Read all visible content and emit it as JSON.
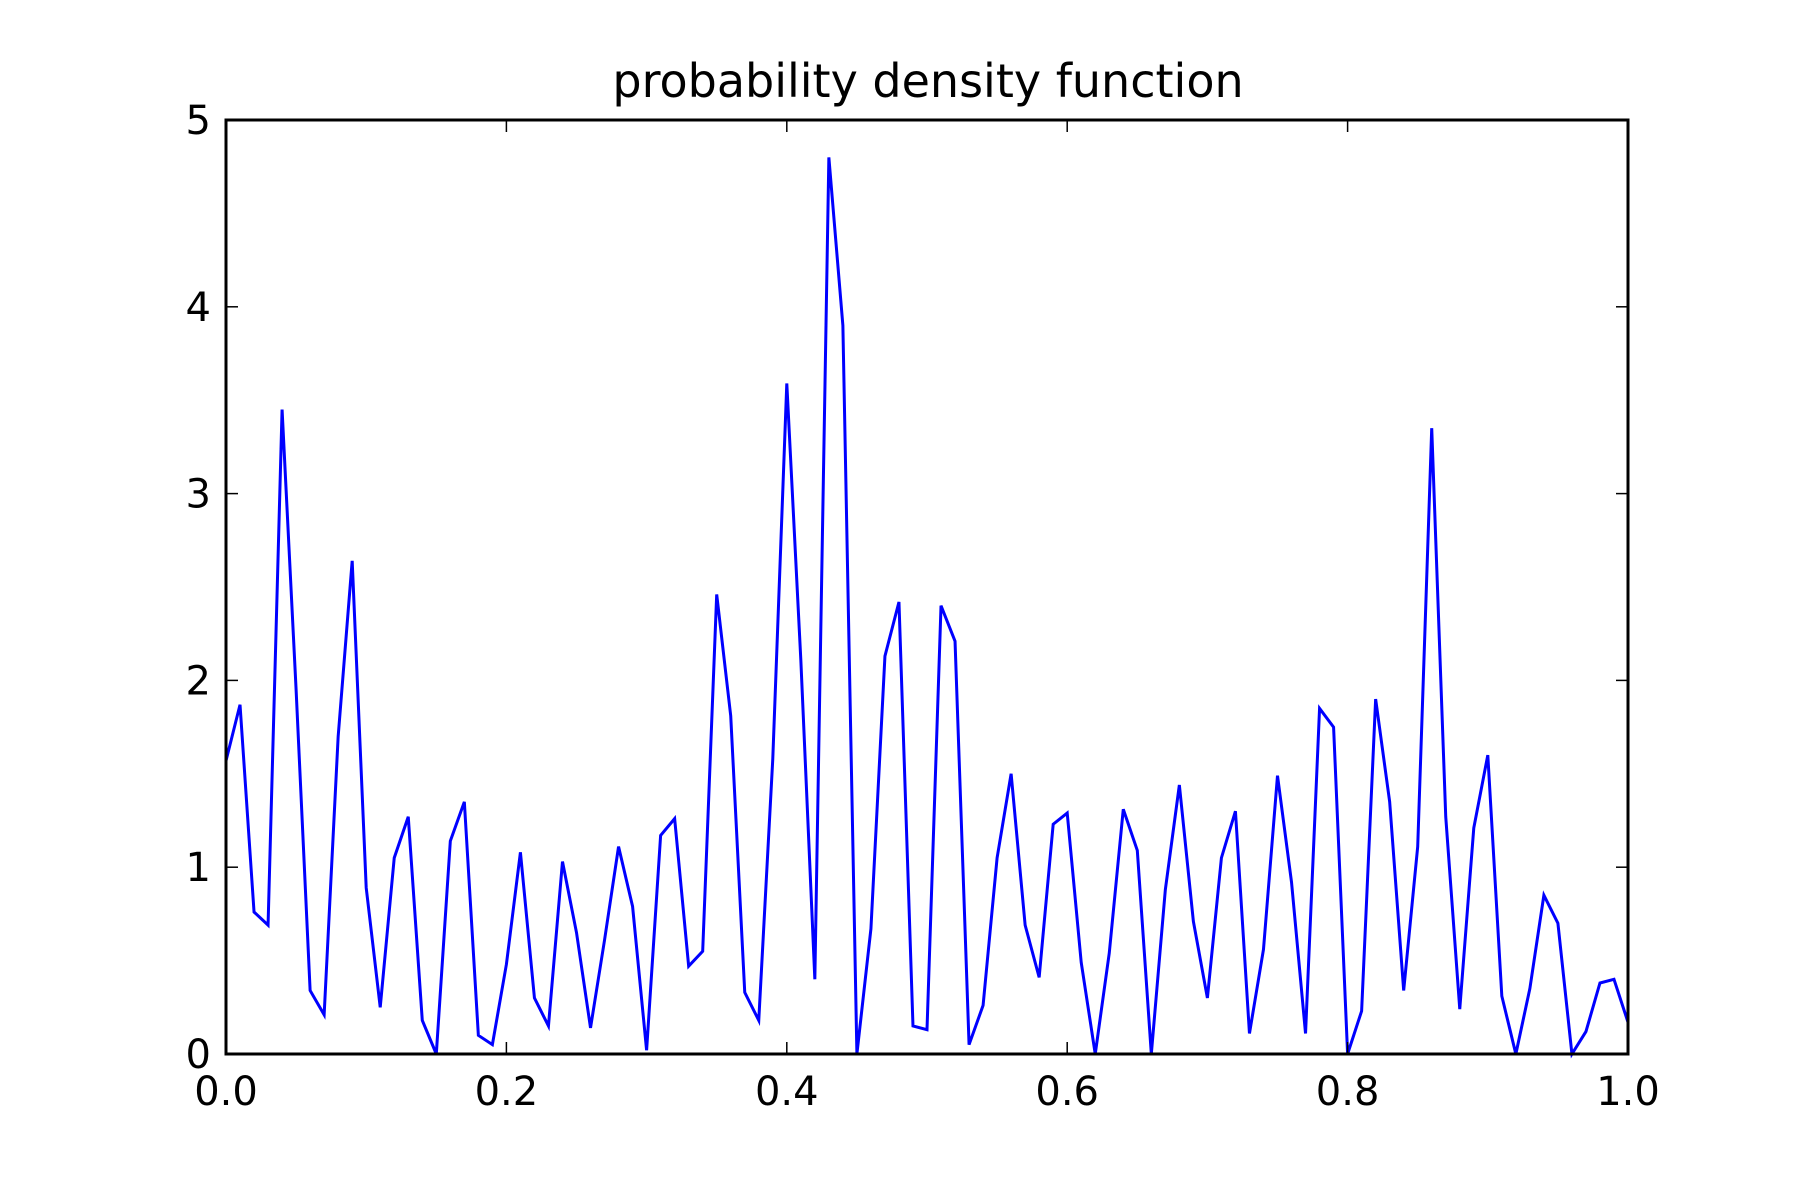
{
  "chart_data": {
    "type": "line",
    "title": "probability density function",
    "xlabel": "",
    "ylabel": "",
    "xlim": [
      0.0,
      1.0
    ],
    "ylim": [
      0,
      5
    ],
    "x_ticks": [
      "0.0",
      "0.2",
      "0.4",
      "0.6",
      "0.8",
      "1.0"
    ],
    "y_ticks": [
      "0",
      "1",
      "2",
      "3",
      "4",
      "5"
    ],
    "grid": false,
    "legend": "none",
    "line_color": "#0000ff",
    "series": [
      {
        "x": [
          0.0,
          0.01,
          0.02,
          0.03,
          0.04,
          0.05,
          0.06,
          0.07,
          0.08,
          0.09,
          0.1,
          0.11,
          0.12,
          0.13,
          0.14,
          0.15,
          0.16,
          0.17,
          0.18,
          0.19,
          0.2,
          0.21,
          0.22,
          0.23,
          0.24,
          0.25,
          0.26,
          0.27,
          0.28,
          0.29,
          0.3,
          0.31,
          0.32,
          0.33,
          0.34,
          0.35,
          0.36,
          0.37,
          0.38,
          0.39,
          0.4,
          0.41,
          0.42,
          0.43,
          0.44,
          0.45,
          0.46,
          0.47,
          0.48,
          0.49,
          0.5,
          0.51,
          0.52,
          0.53,
          0.54,
          0.55,
          0.56,
          0.57,
          0.58,
          0.59,
          0.6,
          0.61,
          0.62,
          0.63,
          0.64,
          0.65,
          0.66,
          0.67,
          0.68,
          0.69,
          0.7,
          0.71,
          0.72,
          0.73,
          0.74,
          0.75,
          0.76,
          0.77,
          0.78,
          0.79,
          0.8,
          0.81,
          0.82,
          0.83,
          0.84,
          0.85,
          0.86,
          0.87,
          0.88,
          0.89,
          0.9,
          0.91,
          0.92,
          0.93,
          0.94,
          0.95,
          0.96,
          0.97,
          0.98,
          0.99,
          1.0
        ],
        "y": [
          1.57,
          1.87,
          0.76,
          0.69,
          3.45,
          1.95,
          0.34,
          0.21,
          1.7,
          2.64,
          0.89,
          0.25,
          1.05,
          1.27,
          0.18,
          0.0,
          1.14,
          1.35,
          0.1,
          0.05,
          0.48,
          1.08,
          0.3,
          0.15,
          1.03,
          0.65,
          0.14,
          0.61,
          1.11,
          0.79,
          0.02,
          1.17,
          1.26,
          0.47,
          0.55,
          2.46,
          1.81,
          0.33,
          0.18,
          1.58,
          3.59,
          2.11,
          0.4,
          4.8,
          3.9,
          0.0,
          0.67,
          2.13,
          2.42,
          0.15,
          0.13,
          2.4,
          2.21,
          0.05,
          0.26,
          1.05,
          1.5,
          0.69,
          0.41,
          1.23,
          1.29,
          0.49,
          0.0,
          0.54,
          1.31,
          1.09,
          0.0,
          0.88,
          1.44,
          0.71,
          0.3,
          1.05,
          1.3,
          0.11,
          0.56,
          1.49,
          0.92,
          0.11,
          1.85,
          1.75,
          0.0,
          0.23,
          1.9,
          1.35,
          0.34,
          1.11,
          3.35,
          1.27,
          0.24,
          1.21,
          1.6,
          0.31,
          0.0,
          0.35,
          0.85,
          0.7,
          0.0,
          0.12,
          0.38,
          0.4,
          0.17
        ]
      }
    ]
  }
}
